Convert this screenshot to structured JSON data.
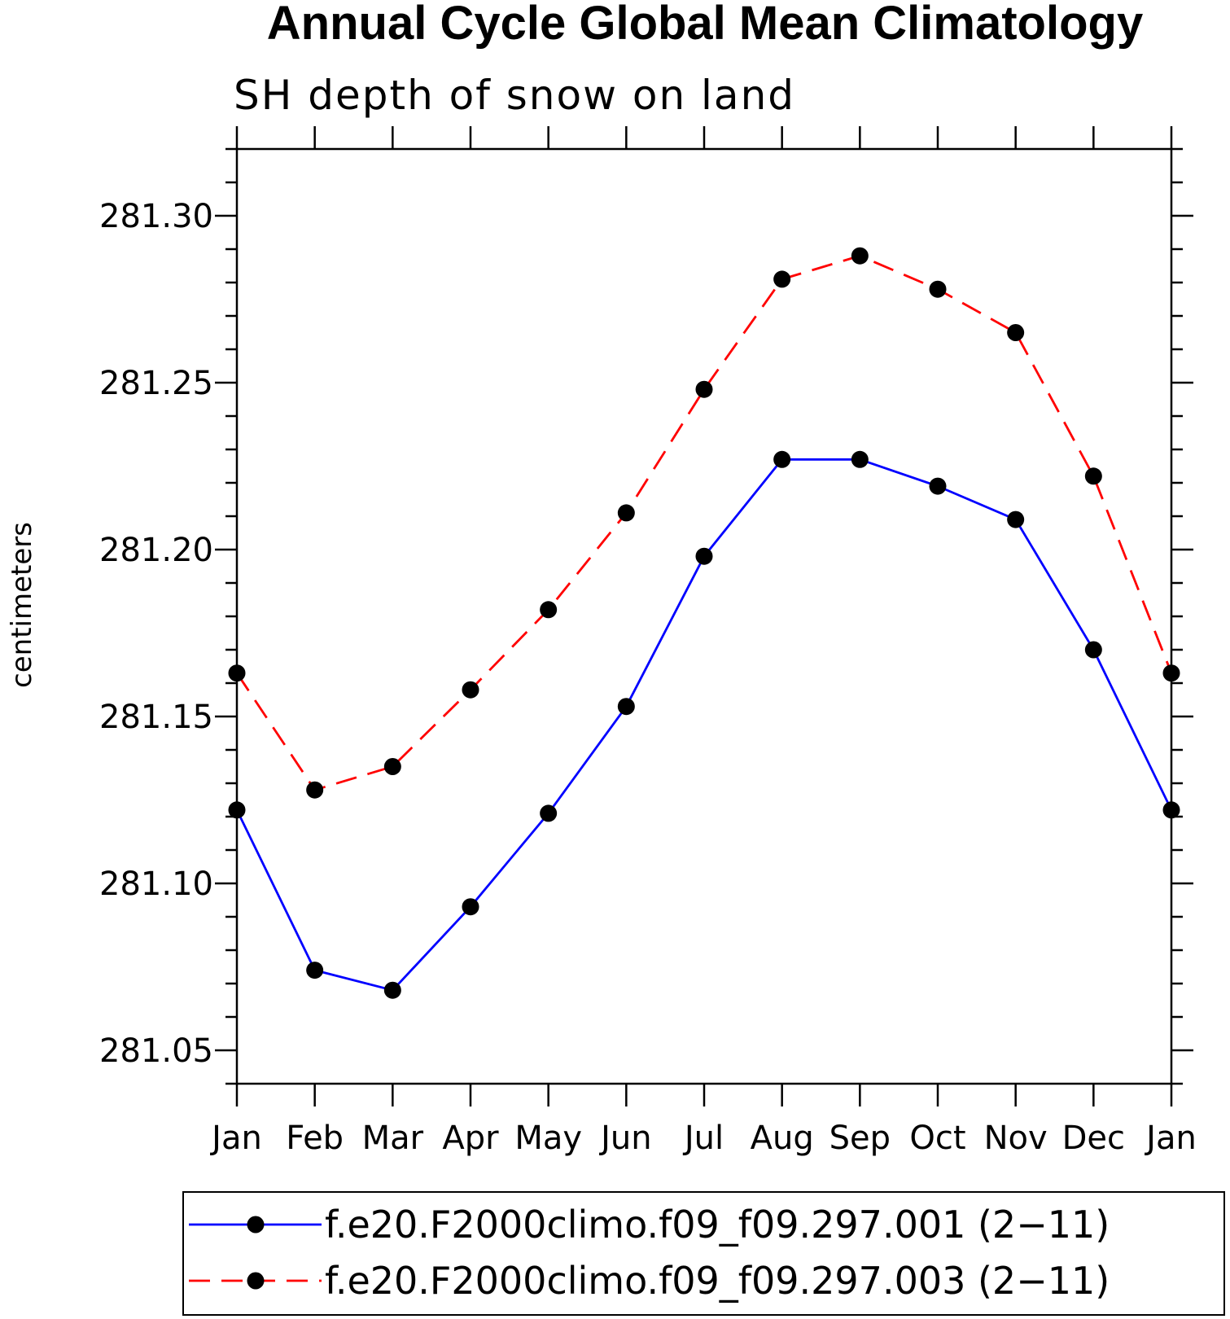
{
  "chart_data": {
    "type": "line",
    "title": "Annual Cycle Global Mean Climatology",
    "subtitle": "SH depth of snow on land",
    "xlabel": "",
    "ylabel": "centimeters",
    "categories": [
      "Jan",
      "Feb",
      "Mar",
      "Apr",
      "May",
      "Jun",
      "Jul",
      "Aug",
      "Sep",
      "Oct",
      "Nov",
      "Dec",
      "Jan"
    ],
    "ylim": [
      281.04,
      281.32
    ],
    "yticks": [
      "281.05",
      "281.10",
      "281.15",
      "281.20",
      "281.25",
      "281.30"
    ],
    "grid": false,
    "legend_position": "bottom",
    "series": [
      {
        "name": "f.e20.F2000climo.f09_f09.297.001 (2−11)",
        "color": "#0000ff",
        "dash": "solid",
        "marker": "filled-circle",
        "marker_color": "#000000",
        "values": [
          281.122,
          281.074,
          281.068,
          281.093,
          281.121,
          281.153,
          281.198,
          281.227,
          281.227,
          281.219,
          281.209,
          281.17,
          281.122
        ]
      },
      {
        "name": "f.e20.F2000climo.f09_f09.297.003 (2−11)",
        "color": "#ff0000",
        "dash": "dashed",
        "marker": "filled-circle",
        "marker_color": "#000000",
        "values": [
          281.163,
          281.128,
          281.135,
          281.158,
          281.182,
          281.211,
          281.248,
          281.281,
          281.288,
          281.278,
          281.265,
          281.222,
          281.163
        ]
      }
    ]
  }
}
